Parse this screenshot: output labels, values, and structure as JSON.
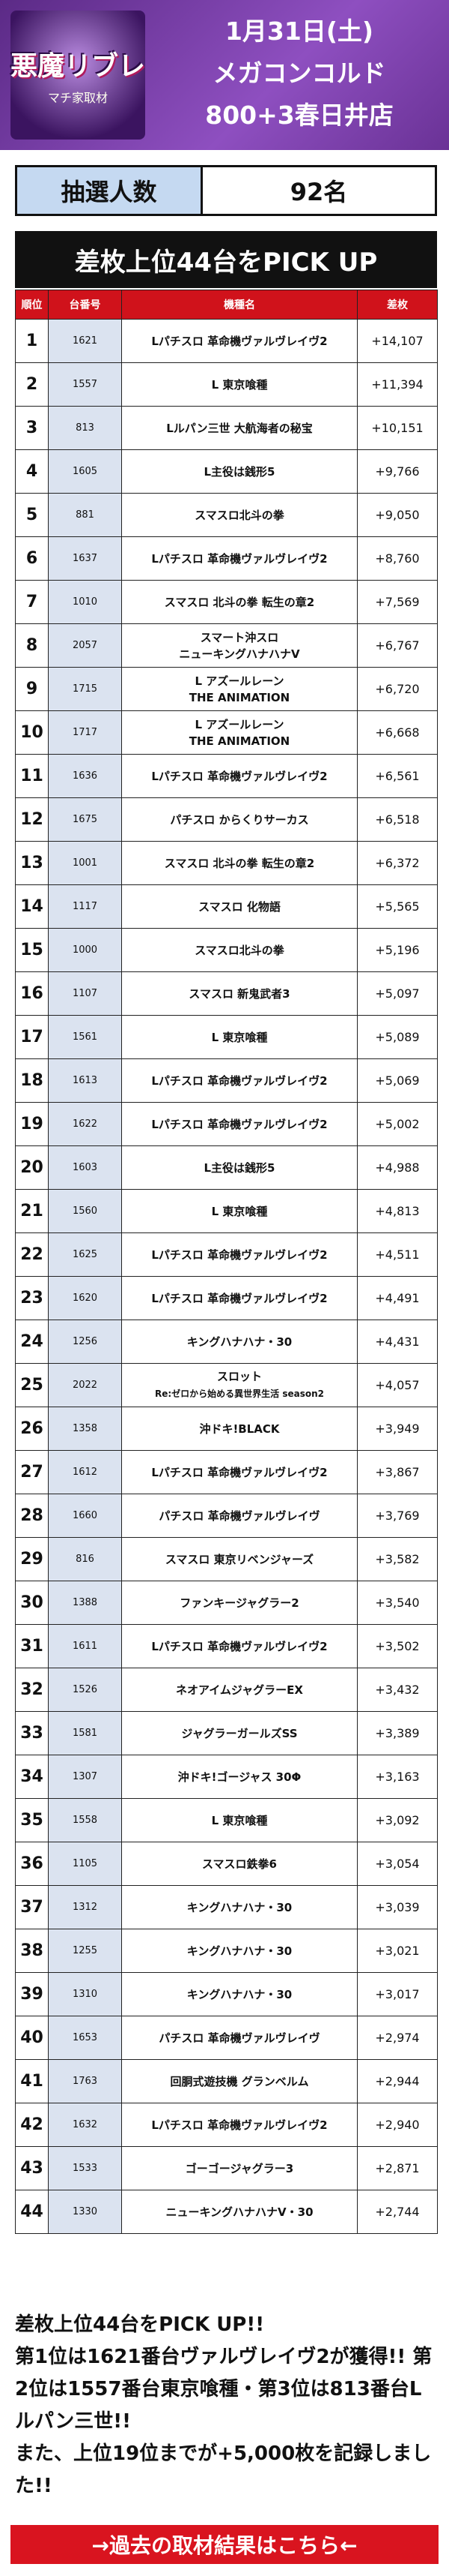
{
  "header": {
    "logo": "悪魔リブレ",
    "logo_sub": "マチ家取材",
    "date": "1月31日(土)",
    "store_lines": [
      "メガコンコルド",
      "800+3春日井店"
    ]
  },
  "lottery": {
    "label": "抽選人数",
    "value": "92名"
  },
  "table": {
    "title": "差枚上位44台をPICK UP",
    "columns": [
      "順位",
      "台番号",
      "機種名",
      "差枚"
    ],
    "rows": [
      [
        1,
        1621,
        [
          "Lパチスロ 革命機ヴァルヴレイヴ2"
        ],
        "+14,107"
      ],
      [
        2,
        1557,
        [
          "L 東京喰種"
        ],
        "+11,394"
      ],
      [
        3,
        813,
        [
          "Lルパン三世 大航海者の秘宝"
        ],
        "+10,151"
      ],
      [
        4,
        1605,
        [
          "L主役は銭形5"
        ],
        "+9,766"
      ],
      [
        5,
        881,
        [
          "スマスロ北斗の拳"
        ],
        "+9,050"
      ],
      [
        6,
        1637,
        [
          "Lパチスロ 革命機ヴァルヴレイヴ2"
        ],
        "+8,760"
      ],
      [
        7,
        1010,
        [
          "スマスロ 北斗の拳 転生の章2"
        ],
        "+7,569"
      ],
      [
        8,
        2057,
        [
          "スマート沖スロ",
          "ニューキングハナハナV"
        ],
        "+6,767"
      ],
      [
        9,
        1715,
        [
          "L アズールレーン",
          "THE ANIMATION"
        ],
        "+6,720"
      ],
      [
        10,
        1717,
        [
          "L アズールレーン",
          "THE ANIMATION"
        ],
        "+6,668"
      ],
      [
        11,
        1636,
        [
          "Lパチスロ 革命機ヴァルヴレイヴ2"
        ],
        "+6,561"
      ],
      [
        12,
        1675,
        [
          "パチスロ からくりサーカス"
        ],
        "+6,518"
      ],
      [
        13,
        1001,
        [
          "スマスロ 北斗の拳 転生の章2"
        ],
        "+6,372"
      ],
      [
        14,
        1117,
        [
          "スマスロ 化物語"
        ],
        "+5,565"
      ],
      [
        15,
        1000,
        [
          "スマスロ北斗の拳"
        ],
        "+5,196"
      ],
      [
        16,
        1107,
        [
          "スマスロ 新鬼武者3"
        ],
        "+5,097"
      ],
      [
        17,
        1561,
        [
          "L 東京喰種"
        ],
        "+5,089"
      ],
      [
        18,
        1613,
        [
          "Lパチスロ 革命機ヴァルヴレイヴ2"
        ],
        "+5,069"
      ],
      [
        19,
        1622,
        [
          "Lパチスロ 革命機ヴァルヴレイヴ2"
        ],
        "+5,002"
      ],
      [
        20,
        1603,
        [
          "L主役は銭形5"
        ],
        "+4,988"
      ],
      [
        21,
        1560,
        [
          "L 東京喰種"
        ],
        "+4,813"
      ],
      [
        22,
        1625,
        [
          "Lパチスロ 革命機ヴァルヴレイヴ2"
        ],
        "+4,511"
      ],
      [
        23,
        1620,
        [
          "Lパチスロ 革命機ヴァルヴレイヴ2"
        ],
        "+4,491"
      ],
      [
        24,
        1256,
        [
          "キングハナハナ・30"
        ],
        "+4,431"
      ],
      [
        25,
        2022,
        [
          "スロット",
          "Re:ゼロから始める異世界生活 season2"
        ],
        "+4,057"
      ],
      [
        26,
        1358,
        [
          "沖ドキ!BLACK"
        ],
        "+3,949"
      ],
      [
        27,
        1612,
        [
          "Lパチスロ 革命機ヴァルヴレイヴ2"
        ],
        "+3,867"
      ],
      [
        28,
        1660,
        [
          "パチスロ 革命機ヴァルヴレイヴ"
        ],
        "+3,769"
      ],
      [
        29,
        816,
        [
          "スマスロ 東京リベンジャーズ"
        ],
        "+3,582"
      ],
      [
        30,
        1388,
        [
          "ファンキージャグラー2"
        ],
        "+3,540"
      ],
      [
        31,
        1611,
        [
          "Lパチスロ 革命機ヴァルヴレイヴ2"
        ],
        "+3,502"
      ],
      [
        32,
        1526,
        [
          "ネオアイムジャグラーEX"
        ],
        "+3,432"
      ],
      [
        33,
        1581,
        [
          "ジャグラーガールズSS"
        ],
        "+3,389"
      ],
      [
        34,
        1307,
        [
          "沖ドキ!ゴージャス 30Φ"
        ],
        "+3,163"
      ],
      [
        35,
        1558,
        [
          "L 東京喰種"
        ],
        "+3,092"
      ],
      [
        36,
        1105,
        [
          "スマスロ鉄拳6"
        ],
        "+3,054"
      ],
      [
        37,
        1312,
        [
          "キングハナハナ・30"
        ],
        "+3,039"
      ],
      [
        38,
        1255,
        [
          "キングハナハナ・30"
        ],
        "+3,021"
      ],
      [
        39,
        1310,
        [
          "キングハナハナ・30"
        ],
        "+3,017"
      ],
      [
        40,
        1653,
        [
          "パチスロ 革命機ヴァルヴレイヴ"
        ],
        "+2,974"
      ],
      [
        41,
        1763,
        [
          "回胴式遊技機 グランベルム"
        ],
        "+2,944"
      ],
      [
        42,
        1632,
        [
          "Lパチスロ 革命機ヴァルヴレイヴ2"
        ],
        "+2,940"
      ],
      [
        43,
        1533,
        [
          "ゴーゴージャグラー3"
        ],
        "+2,871"
      ],
      [
        44,
        1330,
        [
          "ニューキングハナハナV・30"
        ],
        "+2,744"
      ]
    ]
  },
  "summary": [
    "差枚上位44台をPICK UP!!",
    "第1位は1621番台ヴァルヴレイヴ2が獲得!! 第2位は1557番台東京喰種・第3位は813番台Lルパン三世!!",
    "また、上位19位までが+5,000枚を記録しました!!"
  ],
  "link": "→過去の取材結果はこちら←"
}
